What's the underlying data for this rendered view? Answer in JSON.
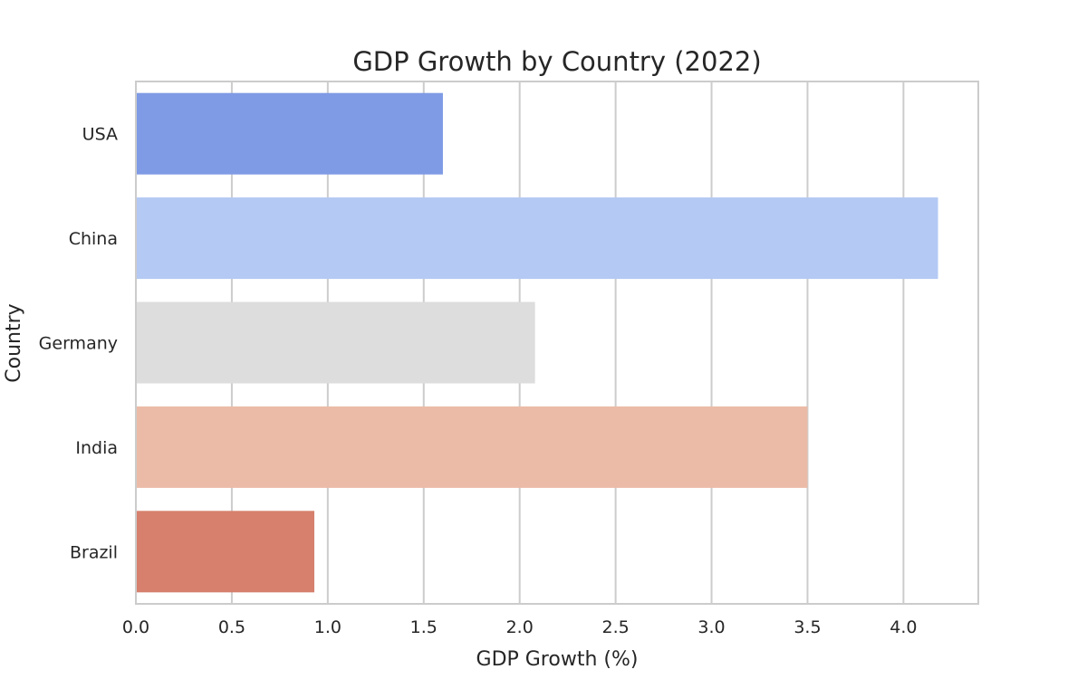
{
  "chart_data": {
    "type": "bar",
    "orientation": "horizontal",
    "title": "GDP Growth by Country (2022)",
    "xlabel": "GDP Growth (%)",
    "ylabel": "Country",
    "categories": [
      "USA",
      "China",
      "Germany",
      "India",
      "Brazil"
    ],
    "values": [
      1.6,
      4.18,
      2.08,
      3.5,
      0.93
    ],
    "colors": [
      "#7f9be5",
      "#b4c9f3",
      "#dddddd",
      "#ecbba7",
      "#d6806d"
    ],
    "xlim": [
      0,
      4.39
    ],
    "xticks": [
      0.0,
      0.5,
      1.0,
      1.5,
      2.0,
      2.5,
      3.0,
      3.5,
      4.0
    ],
    "xtick_labels": [
      "0.0",
      "0.5",
      "1.0",
      "1.5",
      "2.0",
      "2.5",
      "3.0",
      "3.5",
      "4.0"
    ],
    "grid": {
      "x": true,
      "y": false
    },
    "grid_color": "#cccccc",
    "frame_color": "#cccccc"
  }
}
